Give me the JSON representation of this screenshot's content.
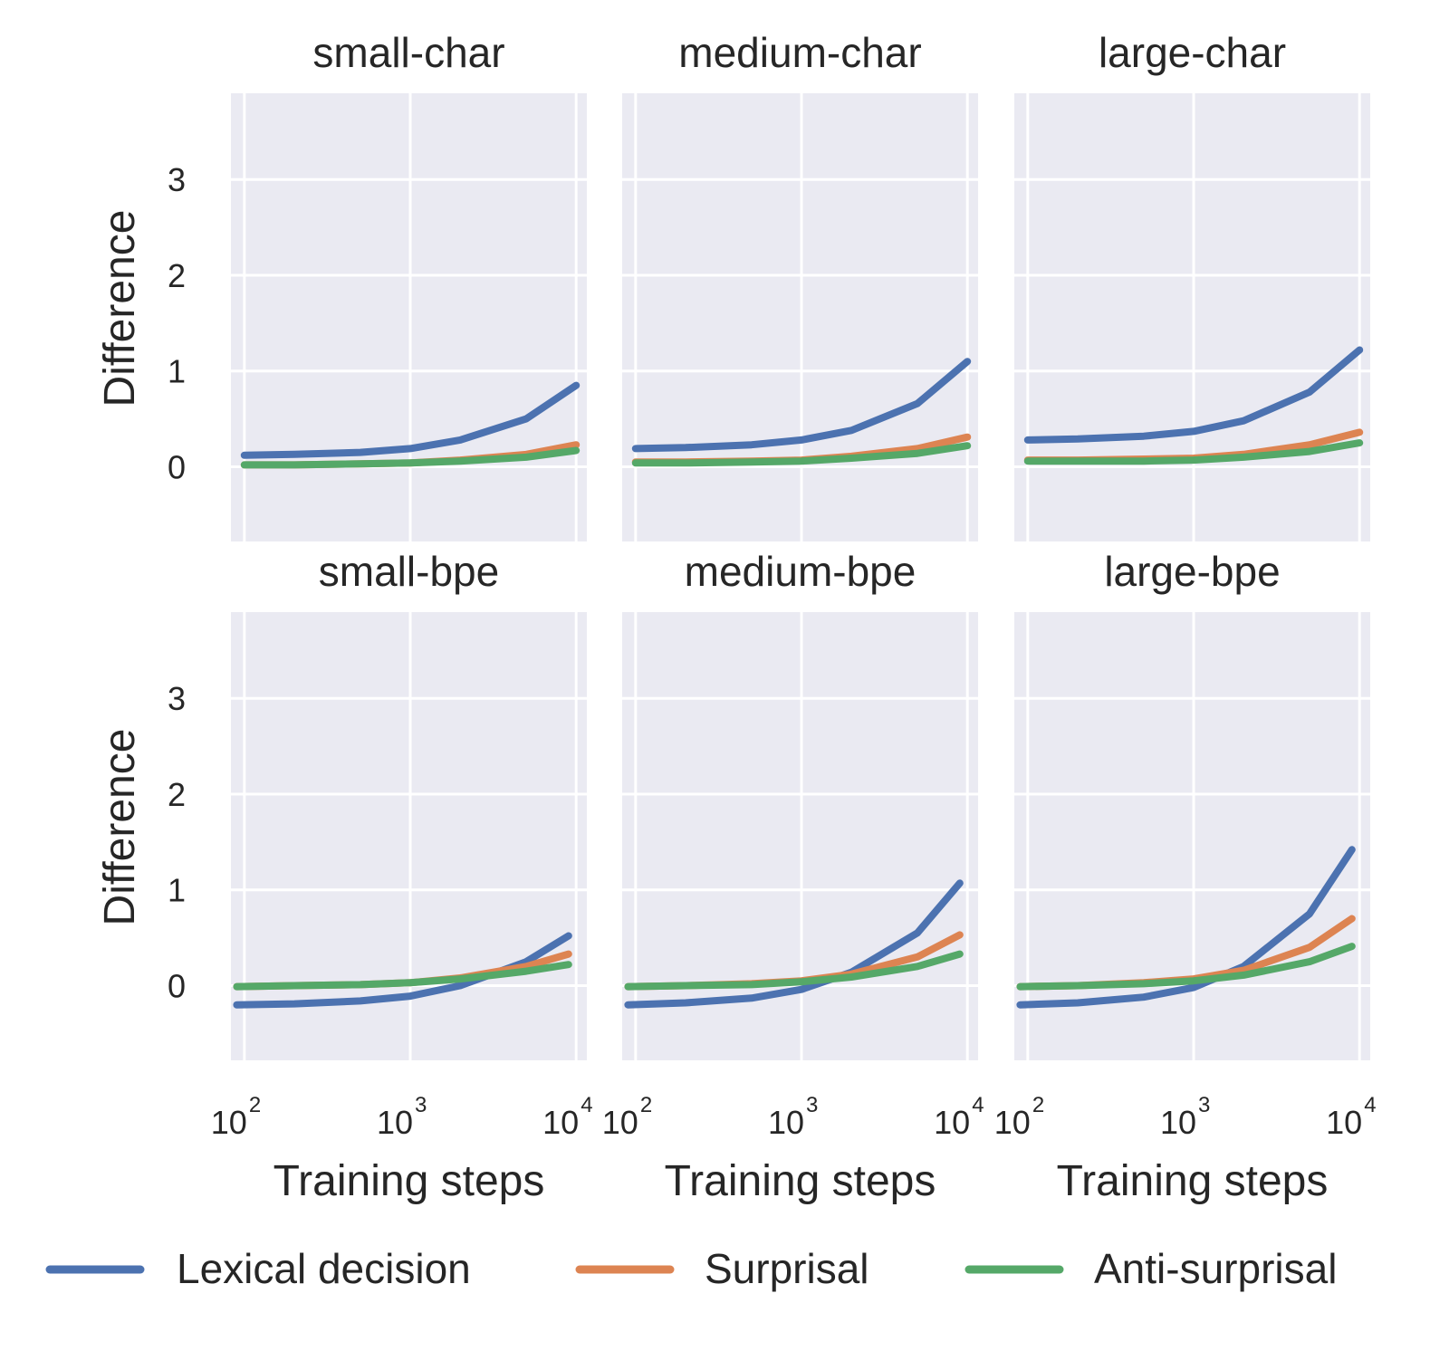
{
  "chart_data": {
    "type": "line",
    "layout": "2x3 small multiples",
    "x_scale": "log",
    "xlim": [
      83,
      11600
    ],
    "ylim": [
      -0.78,
      3.9
    ],
    "x_ticks": [
      {
        "base": "10",
        "exp": "2",
        "value": 100
      },
      {
        "base": "10",
        "exp": "3",
        "value": 1000
      },
      {
        "base": "10",
        "exp": "4",
        "value": 10000
      }
    ],
    "y_ticks": [
      {
        "label": "0",
        "value": 0
      },
      {
        "label": "1",
        "value": 1
      },
      {
        "label": "2",
        "value": 2
      },
      {
        "label": "3",
        "value": 3
      }
    ],
    "xlabel": "Training steps",
    "ylabel": "Difference",
    "grid": true,
    "legend_position": "bottom",
    "legend": [
      {
        "name": "Lexical decision",
        "color": "#4c72b0"
      },
      {
        "name": "Surprisal",
        "color": "#dd8452"
      },
      {
        "name": "Anti-surprisal",
        "color": "#55a868"
      }
    ],
    "panels": [
      {
        "title": "small-char",
        "series": [
          {
            "name": "Lexical decision",
            "x": [
              100,
              200,
              500,
              1000,
              2000,
              5000,
              10000
            ],
            "values": [
              0.12,
              0.13,
              0.15,
              0.19,
              0.28,
              0.5,
              0.85
            ]
          },
          {
            "name": "Surprisal",
            "x": [
              100,
              200,
              500,
              1000,
              2000,
              5000,
              10000
            ],
            "values": [
              0.02,
              0.02,
              0.03,
              0.04,
              0.07,
              0.13,
              0.23
            ]
          },
          {
            "name": "Anti-surprisal",
            "x": [
              100,
              200,
              500,
              1000,
              2000,
              5000,
              10000
            ],
            "values": [
              0.02,
              0.02,
              0.03,
              0.04,
              0.06,
              0.1,
              0.17
            ]
          }
        ]
      },
      {
        "title": "medium-char",
        "series": [
          {
            "name": "Lexical decision",
            "x": [
              100,
              200,
              500,
              1000,
              2000,
              5000,
              10000
            ],
            "values": [
              0.19,
              0.2,
              0.23,
              0.28,
              0.38,
              0.66,
              1.1
            ]
          },
          {
            "name": "Surprisal",
            "x": [
              100,
              200,
              500,
              1000,
              2000,
              5000,
              10000
            ],
            "values": [
              0.05,
              0.05,
              0.06,
              0.07,
              0.11,
              0.19,
              0.31
            ]
          },
          {
            "name": "Anti-surprisal",
            "x": [
              100,
              200,
              500,
              1000,
              2000,
              5000,
              10000
            ],
            "values": [
              0.04,
              0.04,
              0.05,
              0.06,
              0.09,
              0.14,
              0.22
            ]
          }
        ]
      },
      {
        "title": "large-char",
        "series": [
          {
            "name": "Lexical decision",
            "x": [
              100,
              200,
              500,
              1000,
              2000,
              5000,
              10000
            ],
            "values": [
              0.28,
              0.29,
              0.32,
              0.37,
              0.48,
              0.78,
              1.22
            ]
          },
          {
            "name": "Surprisal",
            "x": [
              100,
              200,
              500,
              1000,
              2000,
              5000,
              10000
            ],
            "values": [
              0.07,
              0.07,
              0.08,
              0.09,
              0.13,
              0.23,
              0.36
            ]
          },
          {
            "name": "Anti-surprisal",
            "x": [
              100,
              200,
              500,
              1000,
              2000,
              5000,
              10000
            ],
            "values": [
              0.06,
              0.06,
              0.06,
              0.07,
              0.1,
              0.16,
              0.25
            ]
          }
        ]
      },
      {
        "title": "small-bpe",
        "series": [
          {
            "name": "Lexical decision",
            "x": [
              90,
              200,
              500,
              1000,
              2000,
              5000,
              9000
            ],
            "values": [
              -0.2,
              -0.19,
              -0.16,
              -0.11,
              0.0,
              0.25,
              0.52
            ]
          },
          {
            "name": "Surprisal",
            "x": [
              90,
              200,
              500,
              1000,
              2000,
              5000,
              9000
            ],
            "values": [
              -0.01,
              0.0,
              0.01,
              0.03,
              0.08,
              0.2,
              0.33
            ]
          },
          {
            "name": "Anti-surprisal",
            "x": [
              90,
              200,
              500,
              1000,
              2000,
              5000,
              9000
            ],
            "values": [
              -0.01,
              0.0,
              0.01,
              0.03,
              0.07,
              0.15,
              0.22
            ]
          }
        ]
      },
      {
        "title": "medium-bpe",
        "series": [
          {
            "name": "Lexical decision",
            "x": [
              90,
              200,
              500,
              1000,
              2000,
              5000,
              9000
            ],
            "values": [
              -0.2,
              -0.18,
              -0.13,
              -0.04,
              0.14,
              0.55,
              1.07
            ]
          },
          {
            "name": "Surprisal",
            "x": [
              90,
              200,
              500,
              1000,
              2000,
              5000,
              9000
            ],
            "values": [
              -0.01,
              0.0,
              0.02,
              0.05,
              0.12,
              0.3,
              0.53
            ]
          },
          {
            "name": "Anti-surprisal",
            "x": [
              90,
              200,
              500,
              1000,
              2000,
              5000,
              9000
            ],
            "values": [
              -0.01,
              0.0,
              0.01,
              0.04,
              0.09,
              0.2,
              0.33
            ]
          }
        ]
      },
      {
        "title": "large-bpe",
        "series": [
          {
            "name": "Lexical decision",
            "x": [
              90,
              200,
              500,
              1000,
              2000,
              5000,
              9000
            ],
            "values": [
              -0.2,
              -0.18,
              -0.12,
              -0.02,
              0.2,
              0.75,
              1.42
            ]
          },
          {
            "name": "Surprisal",
            "x": [
              90,
              200,
              500,
              1000,
              2000,
              5000,
              9000
            ],
            "values": [
              -0.01,
              0.0,
              0.03,
              0.07,
              0.16,
              0.4,
              0.7
            ]
          },
          {
            "name": "Anti-surprisal",
            "x": [
              90,
              200,
              500,
              1000,
              2000,
              5000,
              9000
            ],
            "values": [
              -0.01,
              0.0,
              0.02,
              0.05,
              0.11,
              0.25,
              0.41
            ]
          }
        ]
      }
    ]
  }
}
